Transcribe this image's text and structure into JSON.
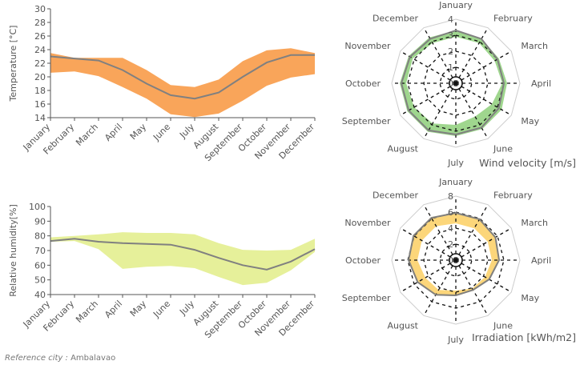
{
  "caption": {
    "label": "Reference city :",
    "city": "Ambalavao"
  },
  "colors": {
    "temp_band": "#f9a55a",
    "humidity_band": "#e6f09a",
    "wind_band": "#9fd68e",
    "irr_band": "#fcd67a",
    "mean_line": "#808080",
    "axis": "#555555",
    "grid": "#cccccc"
  },
  "chart_data": [
    {
      "id": "temperature",
      "type": "area",
      "ylabel": "Temperature [°C]",
      "categories": [
        "January",
        "February",
        "March",
        "April",
        "May",
        "June",
        "July",
        "August",
        "September",
        "October",
        "November",
        "December"
      ],
      "ylim": [
        14,
        30
      ],
      "yticks": [
        14,
        16,
        18,
        20,
        22,
        24,
        26,
        28,
        30
      ],
      "series": [
        {
          "role": "min",
          "values": [
            20.6,
            20.8,
            20.1,
            18.5,
            16.8,
            14.5,
            14.1,
            14.6,
            16.5,
            18.7,
            19.9,
            20.4
          ]
        },
        {
          "role": "max",
          "values": [
            23.5,
            22.8,
            22.8,
            22.8,
            21.0,
            18.8,
            18.5,
            19.6,
            22.3,
            23.9,
            24.2,
            23.5
          ]
        },
        {
          "role": "mean",
          "values": [
            23.0,
            22.7,
            22.4,
            21.0,
            19.0,
            17.3,
            16.8,
            17.7,
            20.0,
            22.1,
            23.2,
            23.2
          ]
        }
      ]
    },
    {
      "id": "humidity",
      "type": "area",
      "ylabel": "Relative humidity[%]",
      "categories": [
        "January",
        "February",
        "March",
        "April",
        "May",
        "June",
        "July",
        "August",
        "September",
        "October",
        "November",
        "December"
      ],
      "ylim": [
        40,
        100
      ],
      "yticks": [
        40,
        50,
        60,
        70,
        80,
        90,
        100
      ],
      "series": [
        {
          "role": "min",
          "values": [
            76,
            76.5,
            71,
            57.5,
            59,
            59.5,
            58,
            52,
            46.5,
            48,
            56.5,
            69
          ]
        },
        {
          "role": "max",
          "values": [
            79,
            80,
            81,
            82.5,
            82,
            82,
            81,
            75,
            70.5,
            70,
            70.5,
            78
          ]
        },
        {
          "role": "mean",
          "values": [
            76.5,
            78,
            76,
            75,
            74.5,
            74,
            70.5,
            65,
            60,
            57,
            62.5,
            71
          ]
        }
      ]
    },
    {
      "id": "wind",
      "type": "area",
      "title": "Wind velocity [m/s]",
      "categories": [
        "January",
        "February",
        "March",
        "April",
        "May",
        "June",
        "July",
        "August",
        "September",
        "October",
        "November",
        "December"
      ],
      "rlim": [
        0,
        4
      ],
      "rticks": [
        0,
        1,
        2,
        3,
        4
      ],
      "series": [
        {
          "role": "min",
          "values": [
            2.9,
            2.9,
            2.8,
            2.9,
            2.6,
            2.4,
            2.6,
            2.9,
            3.0,
            3.1,
            3.1,
            2.9
          ]
        },
        {
          "role": "max",
          "values": [
            3.3,
            3.2,
            3.1,
            3.2,
            3.3,
            3.3,
            3.3,
            3.5,
            3.5,
            3.5,
            3.4,
            3.3
          ]
        },
        {
          "role": "mean",
          "values": [
            3.3,
            3.2,
            3.0,
            3.0,
            3.1,
            3.2,
            3.2,
            3.4,
            3.4,
            3.4,
            3.3,
            3.2
          ]
        }
      ]
    },
    {
      "id": "irradiation",
      "type": "area",
      "title": "Irradiation [kWh/m2]",
      "categories": [
        "January",
        "February",
        "March",
        "April",
        "May",
        "June",
        "July",
        "August",
        "September",
        "October",
        "November",
        "December"
      ],
      "rlim": [
        0,
        8
      ],
      "rticks": [
        0,
        2,
        4,
        6,
        8
      ],
      "series": [
        {
          "role": "min",
          "values": [
            4.6,
            4.6,
            4.6,
            4.5,
            4.2,
            4.1,
            3.8,
            4.3,
            4.4,
            4.8,
            4.9,
            4.9
          ]
        },
        {
          "role": "max",
          "values": [
            6.0,
            6.0,
            5.8,
            5.5,
            4.9,
            4.4,
            4.5,
            5.1,
            5.6,
            6.0,
            6.2,
            6.2
          ]
        },
        {
          "role": "mean",
          "values": [
            5.9,
            5.9,
            5.7,
            5.4,
            4.8,
            4.3,
            4.4,
            5.0,
            5.5,
            5.9,
            6.1,
            6.1
          ]
        }
      ]
    }
  ]
}
